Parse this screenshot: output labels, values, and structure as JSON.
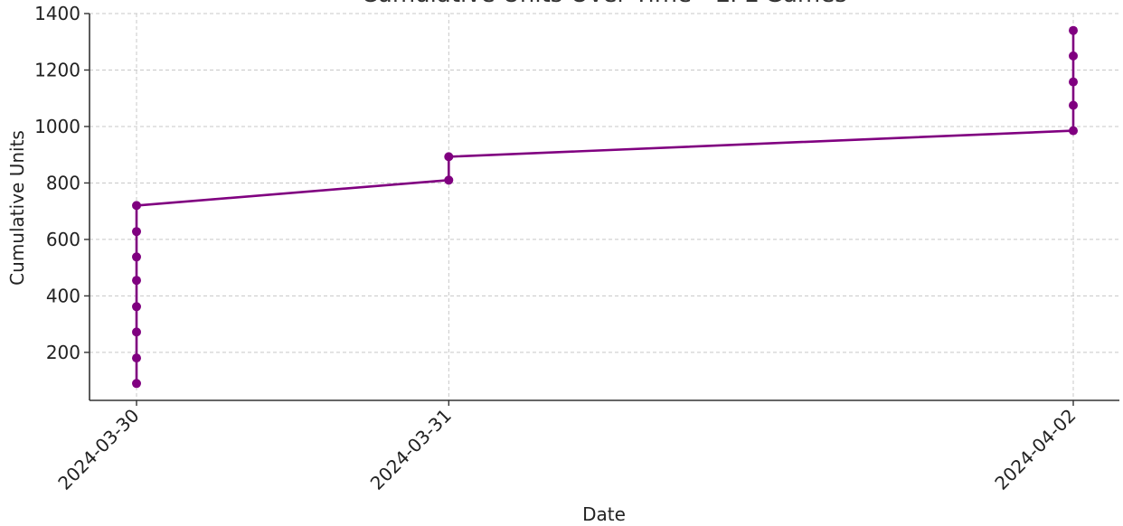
{
  "chart_data": {
    "type": "line",
    "title": "Cumulative Units Over Time - EPL Games",
    "xlabel": "Date",
    "ylabel": "Cumulative Units",
    "x_ticks": [
      "2024-03-30",
      "2024-03-31",
      "2024-04-02"
    ],
    "y_ticks": [
      200,
      400,
      600,
      800,
      1000,
      1200,
      1400
    ],
    "ylim": [
      30,
      1400
    ],
    "grid": true,
    "series": [
      {
        "x": [
          "2024-03-30",
          "2024-03-30",
          "2024-03-30",
          "2024-03-30",
          "2024-03-30",
          "2024-03-30",
          "2024-03-30",
          "2024-03-30",
          "2024-03-31",
          "2024-03-31",
          "2024-04-02",
          "2024-04-02",
          "2024-04-02",
          "2024-04-02",
          "2024-04-02"
        ],
        "y": [
          90,
          180,
          272,
          362,
          455,
          538,
          628,
          720,
          810,
          893,
          985,
          1075,
          1158,
          1250,
          1340
        ],
        "color": "#800080"
      }
    ]
  }
}
